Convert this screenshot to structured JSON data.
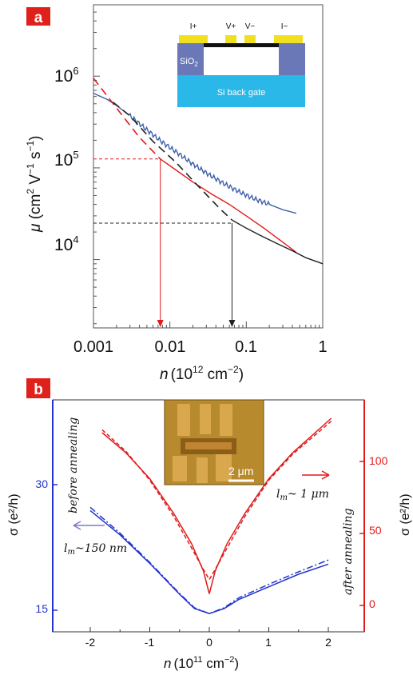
{
  "panel_a": {
    "badge": "a",
    "badge_color": "#e0201b",
    "xaxis_title": "n (10¹² cm⁻²)",
    "xaxis_title_main": "n",
    "xaxis_title_units": "(10",
    "xaxis_title_exp": "12",
    "xaxis_title_units2": " cm",
    "xaxis_title_exp2": "−2",
    "xaxis_title_close": ")",
    "yaxis_title": "μ (cm² V⁻¹ s⁻¹)",
    "yaxis_title_mu": "μ",
    "yaxis_title_a": " (cm",
    "yaxis_title_e1": "2",
    "yaxis_title_b": " V",
    "yaxis_title_e2": "−1",
    "yaxis_title_c": " s",
    "yaxis_title_e3": "−1",
    "yaxis_title_d": ")",
    "xticks": [
      "0.001",
      "0.01",
      "0.1",
      "1"
    ],
    "ytick_base": "10",
    "ytick_exps": [
      "6",
      "5",
      "4"
    ],
    "inset": {
      "contacts": [
        "I+",
        "V+",
        "V−",
        "I−"
      ],
      "oxide_label": "SiO",
      "oxide_sub": "2",
      "gate_label": "Si back gate",
      "colors": {
        "gate": "#29b8e8",
        "oxide": "#6a78b8",
        "contact": "#f0e020",
        "graphene": "#111111"
      }
    }
  },
  "panel_b": {
    "badge": "b",
    "badge_color": "#e0201b",
    "xaxis_title_main": "n",
    "xaxis_title_units": "(10",
    "xaxis_title_exp": "11",
    "xaxis_title_units2": " cm",
    "xaxis_title_exp2": "−2",
    "xaxis_title_close": ")",
    "xticks": [
      "-2",
      "-1",
      "0",
      "1",
      "2"
    ],
    "left_yticks": [
      "30",
      "15"
    ],
    "right_yticks": [
      "100",
      "50",
      "0"
    ],
    "left_ylabel": "σ (e²/h)",
    "right_ylabel": "σ (e²/h)",
    "left_label_color": "#2233cc",
    "right_label_color": "#e01a1a",
    "before_annealing": "before annealing",
    "after_annealing": "after annealing",
    "lm_before": "l",
    "lm_before_sub": "m",
    "lm_before_val": "~150 nm",
    "lm_after": "l",
    "lm_after_sub": "m",
    "lm_after_val": "~ 1 μm",
    "scale_bar": "2 μm"
  },
  "chart_data": [
    {
      "type": "line",
      "panel": "a",
      "xscale": "log",
      "yscale": "log",
      "xlim": [
        0.001,
        1
      ],
      "ylim": [
        1800,
        6000000
      ],
      "xlabel": "n (10¹² cm⁻²)",
      "ylabel": "μ (cm² V⁻¹ s⁻¹)",
      "series": [
        {
          "color": "#3f5fa8",
          "style": "solid",
          "x": [
            0.001,
            0.0015,
            0.002,
            0.003,
            0.005,
            0.008,
            0.012,
            0.02,
            0.03,
            0.05,
            0.08,
            0.12,
            0.2,
            0.3,
            0.45
          ],
          "y": [
            650000,
            560000,
            480000,
            370000,
            260000,
            190000,
            150000,
            110000,
            88000,
            68000,
            55000,
            47000,
            40000,
            35000,
            32000
          ]
        },
        {
          "color": "#e01a1a",
          "style": "solid",
          "x": [
            0.0075,
            0.012,
            0.02,
            0.035,
            0.06,
            0.1,
            0.17,
            0.3,
            0.45
          ],
          "y": [
            125000,
            95000,
            70000,
            52000,
            40000,
            30000,
            22000,
            15500,
            12000
          ]
        },
        {
          "color": "#e01a1a",
          "style": "dashed",
          "x": [
            0.001,
            0.002,
            0.004,
            0.0075
          ],
          "y": [
            950000,
            450000,
            215000,
            125000
          ]
        },
        {
          "color": "#222222",
          "style": "solid",
          "x": [
            0.065,
            0.1,
            0.15,
            0.25,
            0.4,
            0.6,
            1
          ],
          "y": [
            27000,
            22000,
            18500,
            15000,
            12500,
            10500,
            9000
          ]
        },
        {
          "color": "#222222",
          "style": "dashed",
          "x": [
            0.0018,
            0.003,
            0.006,
            0.012,
            0.025,
            0.045,
            0.065
          ],
          "y": [
            520000,
            370000,
            195000,
            115000,
            60000,
            36000,
            27000
          ]
        }
      ],
      "reference_lines": [
        {
          "color": "#e01a1a",
          "y": 125000,
          "x": 0.0075
        },
        {
          "color": "#222222",
          "y": 25000,
          "x": 0.065
        }
      ]
    },
    {
      "type": "line",
      "panel": "b",
      "xlim": [
        -2.6,
        2.6
      ],
      "xlabel": "n (10¹¹ cm⁻²)",
      "left_ylabel": "σ (e²/h)",
      "right_ylabel": "σ (e²/h)",
      "left_ylim": [
        12,
        39
      ],
      "right_ylim": [
        -20,
        135
      ],
      "series": [
        {
          "color": "#2233cc",
          "axis": "left",
          "style": "solid",
          "x": [
            -2,
            -1.5,
            -1,
            -0.5,
            -0.25,
            0,
            0.25,
            0.5,
            1,
            1.5,
            2
          ],
          "y": [
            26.9,
            24.0,
            20.6,
            16.9,
            15.2,
            14.6,
            15.2,
            16.3,
            17.8,
            19.3,
            20.5
          ]
        },
        {
          "color": "#2233cc",
          "axis": "left",
          "style": "dashdot",
          "x": [
            -2,
            -1.5,
            -1,
            -0.5,
            -0.25,
            0,
            0.25,
            0.5,
            1,
            1.5,
            2
          ],
          "y": [
            27.3,
            24.2,
            20.7,
            17.0,
            15.3,
            14.6,
            15.3,
            16.5,
            18.1,
            19.6,
            21.0
          ]
        },
        {
          "color": "#e01a1a",
          "axis": "right",
          "style": "solid",
          "x": [
            -1.8,
            -1.4,
            -1,
            -0.6,
            -0.3,
            -0.1,
            0,
            0.1,
            0.3,
            0.6,
            1,
            1.4,
            2.05
          ],
          "y": [
            120,
            106,
            88,
            64,
            43,
            24,
            8,
            24,
            43,
            64,
            88,
            106,
            130
          ]
        },
        {
          "color": "#e01a1a",
          "axis": "right",
          "style": "dashed",
          "x": [
            -1.8,
            -1.4,
            -1,
            -0.6,
            -0.3,
            -0.1,
            0,
            0.1,
            0.3,
            0.6,
            1,
            1.4,
            2.05
          ],
          "y": [
            122,
            107,
            87,
            62,
            40,
            25,
            18,
            25,
            40,
            62,
            87,
            105,
            128
          ]
        }
      ]
    }
  ]
}
